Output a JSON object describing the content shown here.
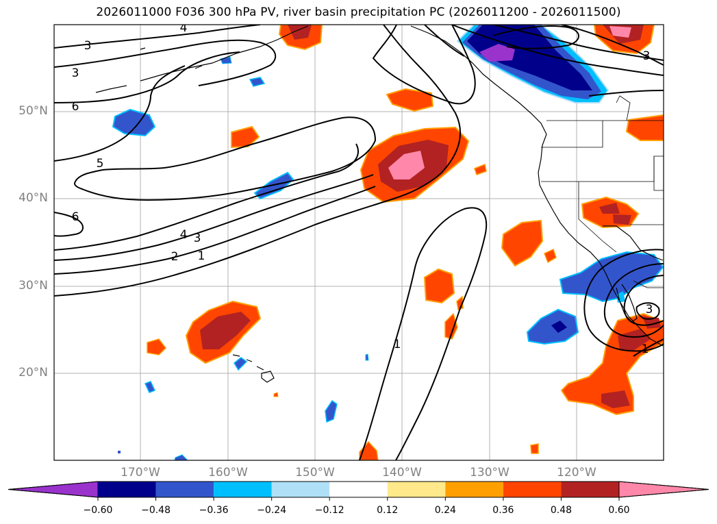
{
  "title": "2026011000 F036 300 hPa PV, river basin precipitation PC (2026011200 - 2026011500)",
  "map": {
    "lat_labels": [
      "50°N",
      "40°N",
      "30°N",
      "20°N"
    ],
    "lon_labels": [
      "170°W",
      "160°W",
      "150°W",
      "140°W",
      "130°W",
      "120°W"
    ],
    "contour_labels": [
      "3",
      "3",
      "6",
      "5",
      "6",
      "4",
      "3",
      "2",
      "1",
      "4",
      "3",
      "1",
      "3",
      "1"
    ]
  },
  "colorbar": {
    "ticks": [
      "−0.60",
      "−0.48",
      "−0.36",
      "−0.24",
      "−0.12",
      "0.12",
      "0.24",
      "0.36",
      "0.48",
      "0.60"
    ],
    "colors": [
      "#9933cc",
      "#00008b",
      "#3355cc",
      "#00bfff",
      "#b0e0f8",
      "#ffffff",
      "#ffe98a",
      "#ffa000",
      "#ff4500",
      "#b22222",
      "#ff88aa"
    ]
  }
}
